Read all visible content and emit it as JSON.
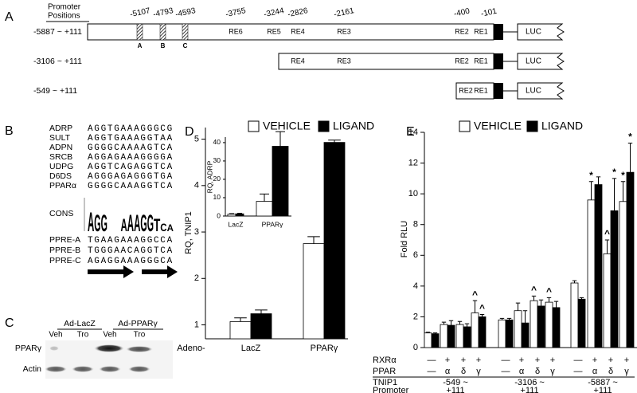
{
  "panel_a": {
    "label": "A",
    "header": [
      "Promoter",
      "Positions"
    ],
    "positions": [
      "-5107",
      "-4793",
      "-4593",
      "-3755",
      "-3244",
      "-2826",
      "-2161",
      "-400",
      "-101"
    ],
    "sites": [
      "A",
      "B",
      "C"
    ],
    "constructs": [
      {
        "name": "-5887 ~ +111",
        "elements": [
          "RE6",
          "RE5",
          "RE4",
          "RE3",
          "RE2",
          "RE1"
        ],
        "reporter": "LUC"
      },
      {
        "name": "-3106 ~ +111",
        "elements": [
          "RE4",
          "RE3",
          "RE2",
          "RE1"
        ],
        "reporter": "LUC"
      },
      {
        "name": "-549 ~ +111",
        "elements": [
          "RE2",
          "RE1"
        ],
        "reporter": "LUC"
      }
    ]
  },
  "panel_b": {
    "label": "B",
    "sequences": [
      {
        "name": "ADRP",
        "seq": "AGGTGAAAGGGCG"
      },
      {
        "name": "SULT",
        "seq": "AGGTGAAAGGTAA"
      },
      {
        "name": "ADPN",
        "seq": "GGGGCAAAAGTCA"
      },
      {
        "name": "SRCB",
        "seq": "AGGAGAAAGGGGA"
      },
      {
        "name": "UDPG",
        "seq": "AGGTCAGAGGTCA"
      },
      {
        "name": "D6DS",
        "seq": "AGGGAGAGGGTGA"
      },
      {
        "name": "PPARα",
        "seq": "GGGGCAAAGGTCA"
      }
    ],
    "consensus_label": "CONS",
    "logo": [
      "AGG",
      "AAAGGTCA"
    ],
    "ppres": [
      {
        "name": "PPRE-A",
        "seq": "TGAAGAAAGGCCA"
      },
      {
        "name": "PPRE-B",
        "seq": "TGGGAACAGGTCA"
      },
      {
        "name": "PPRE-C",
        "seq": "AGAGGAAAGGGCA"
      }
    ]
  },
  "panel_c": {
    "label": "C",
    "groups": [
      "Ad-LacZ",
      "Ad-PPARγ"
    ],
    "lanes": [
      "Veh",
      "Tro",
      "Veh",
      "Tro"
    ],
    "rows": [
      "PPARγ",
      "Actin"
    ]
  },
  "chart_data": [
    {
      "type": "bar",
      "label": "D",
      "ylabel": "RQ, TNIP1",
      "xlabel": "Adeno-",
      "categories": [
        "LacZ",
        "PPARγ"
      ],
      "series": [
        {
          "name": "VEHICLE",
          "color": "#ffffff",
          "values": [
            1.07,
            2.75
          ],
          "errors": [
            0.08,
            0.15
          ]
        },
        {
          "name": "LIGAND",
          "color": "#000000",
          "values": [
            1.24,
            4.93
          ],
          "errors": [
            0.08,
            0.05
          ]
        }
      ],
      "ylim": [
        0.7,
        5.25
      ],
      "yticks": [
        1,
        2,
        3,
        4,
        5
      ]
    },
    {
      "type": "bar",
      "ylabel": "RQ, ADRP",
      "categories": [
        "LacZ",
        "PPARγ"
      ],
      "series": [
        {
          "color": "#ffffff",
          "values": [
            1,
            8
          ],
          "errors": [
            0.3,
            4
          ]
        },
        {
          "color": "#000000",
          "values": [
            1.2,
            38
          ],
          "errors": [
            0.3,
            8
          ]
        }
      ],
      "ylim": [
        0,
        43
      ],
      "yticks": [
        0,
        10,
        20,
        30,
        40
      ]
    },
    {
      "type": "bar",
      "label": "E",
      "ylabel": "Fold RLU",
      "series": [
        {
          "name": "VEHICLE",
          "color": "#ffffff",
          "values": [
            0.95,
            1.5,
            1.5,
            2.25,
            1.8,
            2.4,
            3.05,
            2.95,
            4.2,
            9.6,
            6.1,
            9.5
          ],
          "errors": [
            0.05,
            0.15,
            0.2,
            0.8,
            0.1,
            0.5,
            0.3,
            0.3,
            0.15,
            1.2,
            0.9,
            1.3
          ],
          "annotations": [
            null,
            null,
            null,
            "^",
            null,
            null,
            "^",
            "^",
            null,
            "*",
            "^",
            "*"
          ]
        },
        {
          "name": "LIGAND",
          "color": "#000000",
          "values": [
            0.9,
            1.45,
            1.35,
            2.0,
            1.8,
            1.6,
            2.7,
            2.6,
            3.15,
            10.6,
            8.9,
            11.4
          ],
          "errors": [
            0.05,
            0.3,
            0.2,
            0.15,
            0.1,
            0.8,
            0.4,
            0.4,
            0.1,
            0.5,
            2.1,
            1.9
          ],
          "annotations": [
            null,
            null,
            null,
            "^",
            null,
            null,
            null,
            null,
            null,
            null,
            "*",
            "*"
          ]
        }
      ],
      "rows": [
        {
          "name": "RXRα",
          "values": [
            "—",
            "+",
            "+",
            "+",
            "—",
            "+",
            "+",
            "+",
            "—",
            "+",
            "+",
            "+"
          ]
        },
        {
          "name": "PPAR",
          "values": [
            "—",
            "α",
            "δ",
            "γ",
            "—",
            "α",
            "δ",
            "γ",
            "—",
            "α",
            "δ",
            "γ"
          ]
        }
      ],
      "group_title": [
        "TNIP1",
        "Promoter"
      ],
      "groups": [
        [
          "-549 ~",
          "+111"
        ],
        [
          "-3106 ~",
          "+111"
        ],
        [
          "-5887 ~",
          "+111"
        ]
      ],
      "ylim": [
        0,
        14
      ],
      "yticks": [
        0,
        2,
        4,
        6,
        8,
        10,
        12,
        14
      ]
    }
  ]
}
